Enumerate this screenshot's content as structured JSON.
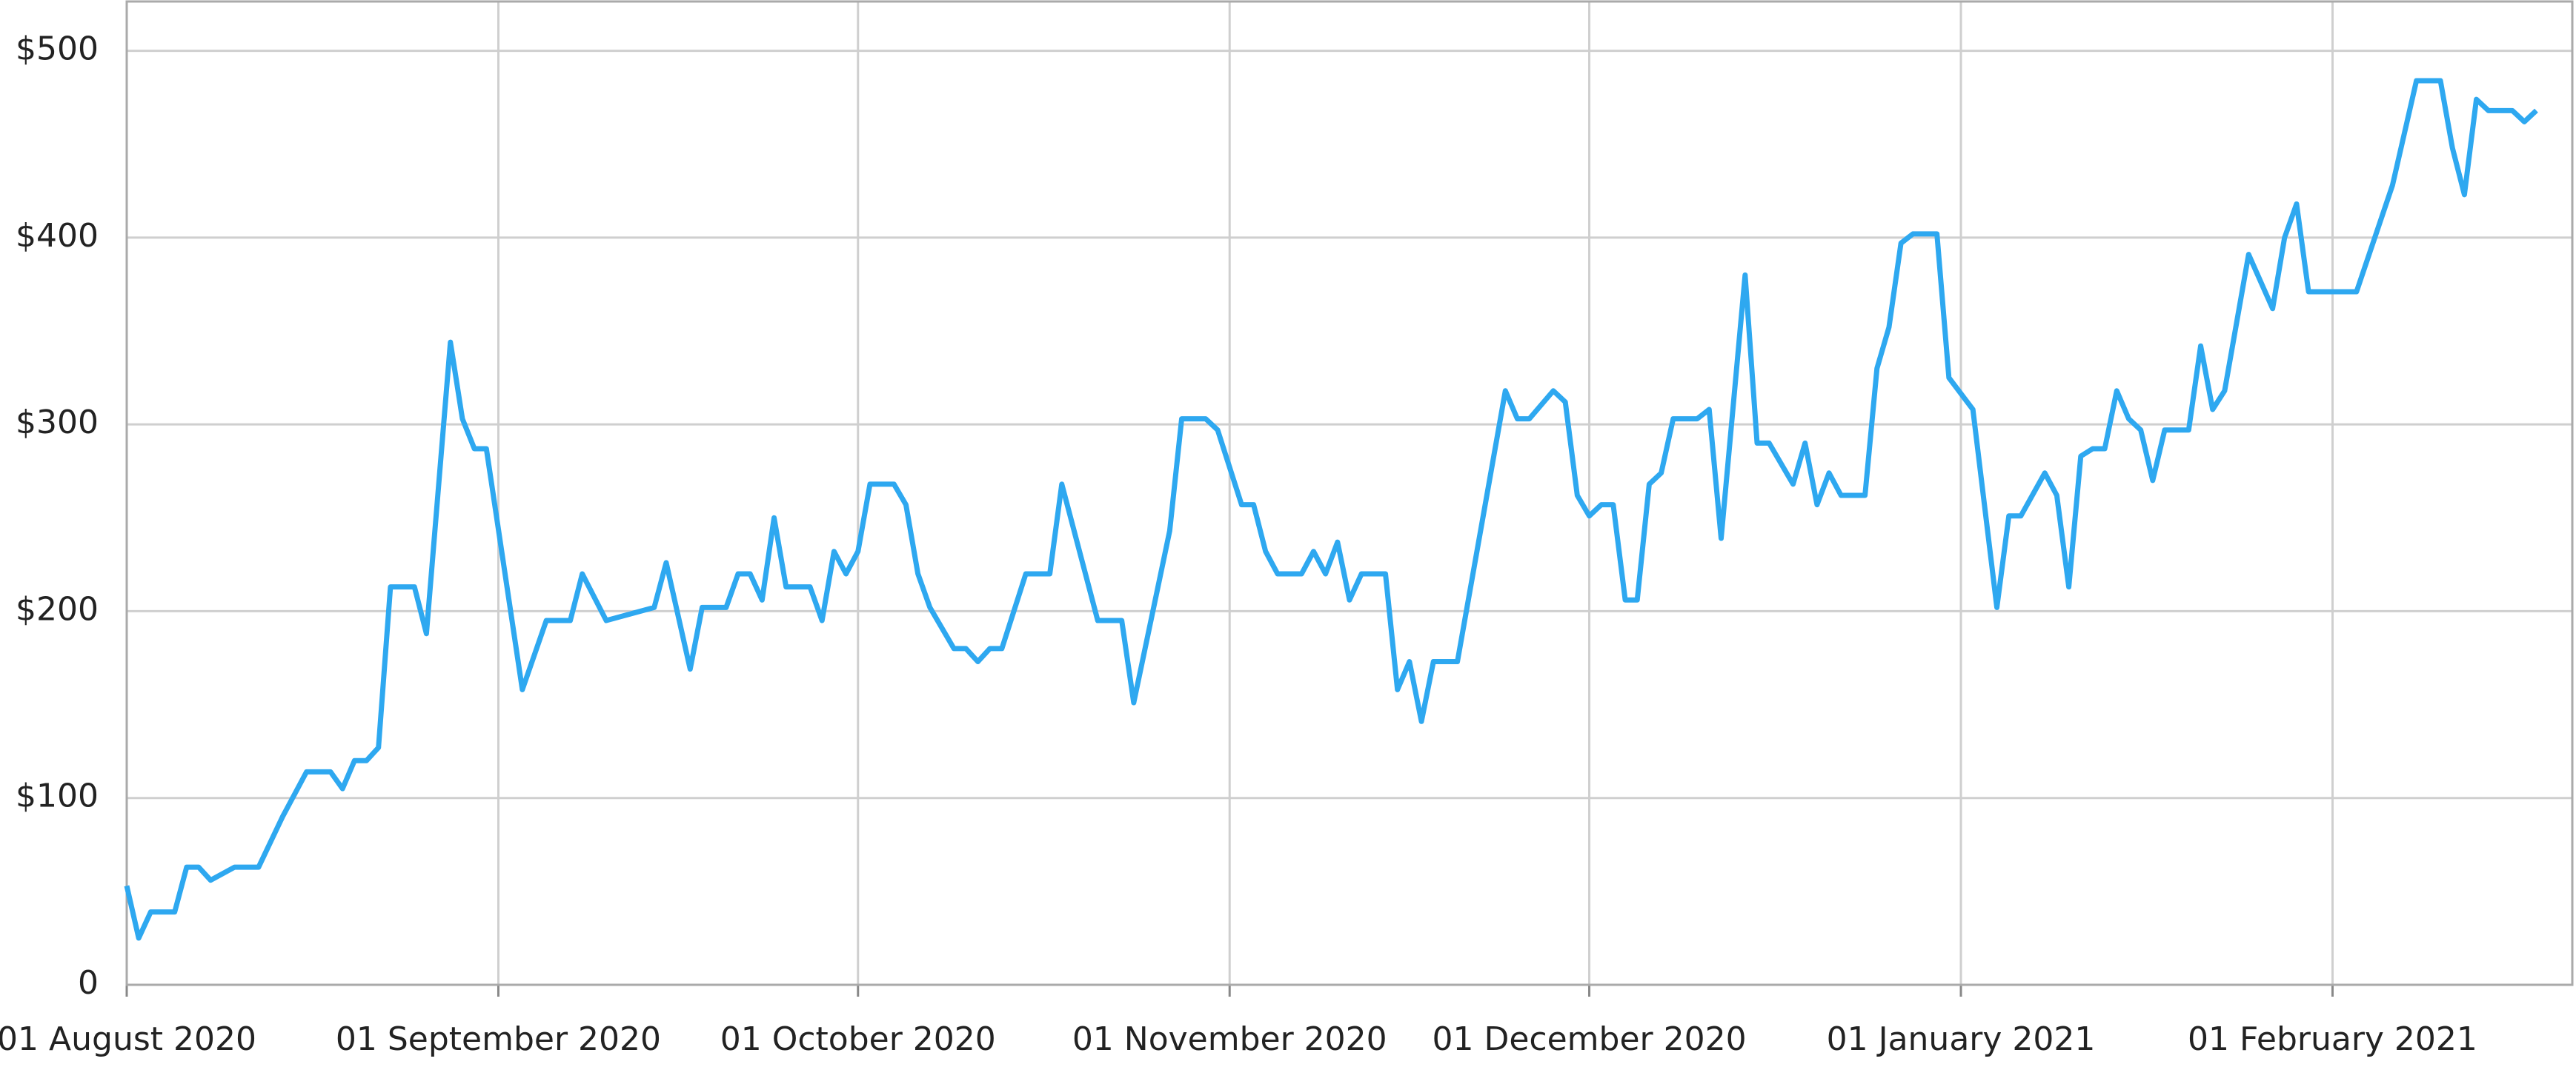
{
  "chart_data": {
    "type": "line",
    "x": [
      "2020-08-01",
      "2020-08-02",
      "2020-08-03",
      "2020-08-05",
      "2020-08-06",
      "2020-08-07",
      "2020-08-08",
      "2020-08-10",
      "2020-08-12",
      "2020-08-14",
      "2020-08-16",
      "2020-08-18",
      "2020-08-19",
      "2020-08-20",
      "2020-08-21",
      "2020-08-22",
      "2020-08-23",
      "2020-08-25",
      "2020-08-26",
      "2020-08-28",
      "2020-08-29",
      "2020-08-30",
      "2020-08-31",
      "2020-09-03",
      "2020-09-05",
      "2020-09-07",
      "2020-09-08",
      "2020-09-10",
      "2020-09-14",
      "2020-09-15",
      "2020-09-17",
      "2020-09-18",
      "2020-09-20",
      "2020-09-21",
      "2020-09-22",
      "2020-09-23",
      "2020-09-24",
      "2020-09-25",
      "2020-09-27",
      "2020-09-28",
      "2020-09-29",
      "2020-09-30",
      "2020-10-01",
      "2020-10-02",
      "2020-10-04",
      "2020-10-05",
      "2020-10-06",
      "2020-10-07",
      "2020-10-09",
      "2020-10-10",
      "2020-10-11",
      "2020-10-12",
      "2020-10-13",
      "2020-10-15",
      "2020-10-17",
      "2020-10-18",
      "2020-10-21",
      "2020-10-23",
      "2020-10-24",
      "2020-10-27",
      "2020-10-28",
      "2020-10-30",
      "2020-10-31",
      "2020-11-02",
      "2020-11-03",
      "2020-11-04",
      "2020-11-05",
      "2020-11-07",
      "2020-11-08",
      "2020-11-09",
      "2020-11-10",
      "2020-11-11",
      "2020-11-12",
      "2020-11-14",
      "2020-11-15",
      "2020-11-16",
      "2020-11-17",
      "2020-11-18",
      "2020-11-20",
      "2020-11-24",
      "2020-11-25",
      "2020-11-26",
      "2020-11-28",
      "2020-11-29",
      "2020-11-30",
      "2020-12-01",
      "2020-12-02",
      "2020-12-03",
      "2020-12-04",
      "2020-12-05",
      "2020-12-06",
      "2020-12-07",
      "2020-12-08",
      "2020-12-10",
      "2020-12-11",
      "2020-12-12",
      "2020-12-14",
      "2020-12-15",
      "2020-12-16",
      "2020-12-18",
      "2020-12-19",
      "2020-12-20",
      "2020-12-21",
      "2020-12-22",
      "2020-12-24",
      "2020-12-25",
      "2020-12-26",
      "2020-12-27",
      "2020-12-28",
      "2020-12-30",
      "2020-12-31",
      "2021-01-02",
      "2021-01-04",
      "2021-01-05",
      "2021-01-06",
      "2021-01-08",
      "2021-01-09",
      "2021-01-10",
      "2021-01-11",
      "2021-01-12",
      "2021-01-13",
      "2021-01-14",
      "2021-01-15",
      "2021-01-16",
      "2021-01-17",
      "2021-01-18",
      "2021-01-20",
      "2021-01-21",
      "2021-01-22",
      "2021-01-23",
      "2021-01-25",
      "2021-01-27",
      "2021-01-28",
      "2021-01-29",
      "2021-01-30",
      "2021-02-01",
      "2021-02-03",
      "2021-02-06",
      "2021-02-08",
      "2021-02-10",
      "2021-02-11",
      "2021-02-12",
      "2021-02-13",
      "2021-02-14",
      "2021-02-16",
      "2021-02-17",
      "2021-02-18"
    ],
    "series": [
      {
        "color": "#2ea8f0",
        "values": [
          53,
          25,
          39,
          39,
          63,
          63,
          56,
          63,
          63,
          90,
          114,
          114,
          105,
          120,
          120,
          127,
          213,
          213,
          188,
          344,
          303,
          287,
          287,
          158,
          195,
          195,
          220,
          195,
          202,
          226,
          169,
          202,
          202,
          220,
          220,
          206,
          250,
          213,
          213,
          195,
          232,
          220,
          232,
          268,
          268,
          257,
          220,
          202,
          180,
          180,
          173,
          180,
          180,
          220,
          220,
          268,
          195,
          195,
          151,
          243,
          303,
          303,
          297,
          257,
          257,
          232,
          220,
          220,
          232,
          220,
          237,
          206,
          220,
          220,
          158,
          173,
          141,
          173,
          173,
          318,
          303,
          303,
          318,
          312,
          262,
          251,
          257,
          257,
          206,
          206,
          268,
          274,
          303,
          303,
          308,
          239,
          380,
          290,
          290,
          268,
          290,
          257,
          274,
          262,
          262,
          330,
          352,
          397,
          402,
          402,
          325,
          308,
          202,
          251,
          251,
          274,
          262,
          213,
          283,
          287,
          287,
          318,
          303,
          297,
          270,
          297,
          297,
          342,
          308,
          318,
          391,
          362,
          400,
          418,
          371,
          371,
          371,
          428,
          484,
          484,
          448,
          423,
          474,
          468,
          468,
          462,
          468
        ]
      }
    ],
    "xlim": [
      "2020-08-01",
      "2021-02-21"
    ],
    "xticks": [
      {
        "value": "2020-08-01",
        "label": "01 August 2020"
      },
      {
        "value": "2020-09-01",
        "label": "01 September 2020"
      },
      {
        "value": "2020-10-01",
        "label": "01 October 2020"
      },
      {
        "value": "2020-11-01",
        "label": "01 November 2020"
      },
      {
        "value": "2020-12-01",
        "label": "01 December 2020"
      },
      {
        "value": "2021-01-01",
        "label": "01 January 2021"
      },
      {
        "value": "2021-02-01",
        "label": "01 February 2021"
      }
    ],
    "ylim": [
      0,
      526
    ],
    "yticks": [
      0,
      {
        "value": 100,
        "label": "$100"
      },
      {
        "value": 200,
        "label": "$200"
      },
      {
        "value": 300,
        "label": "$300"
      },
      {
        "value": 400,
        "label": "$400"
      },
      {
        "value": 500,
        "label": "$500"
      }
    ],
    "grid": true
  }
}
